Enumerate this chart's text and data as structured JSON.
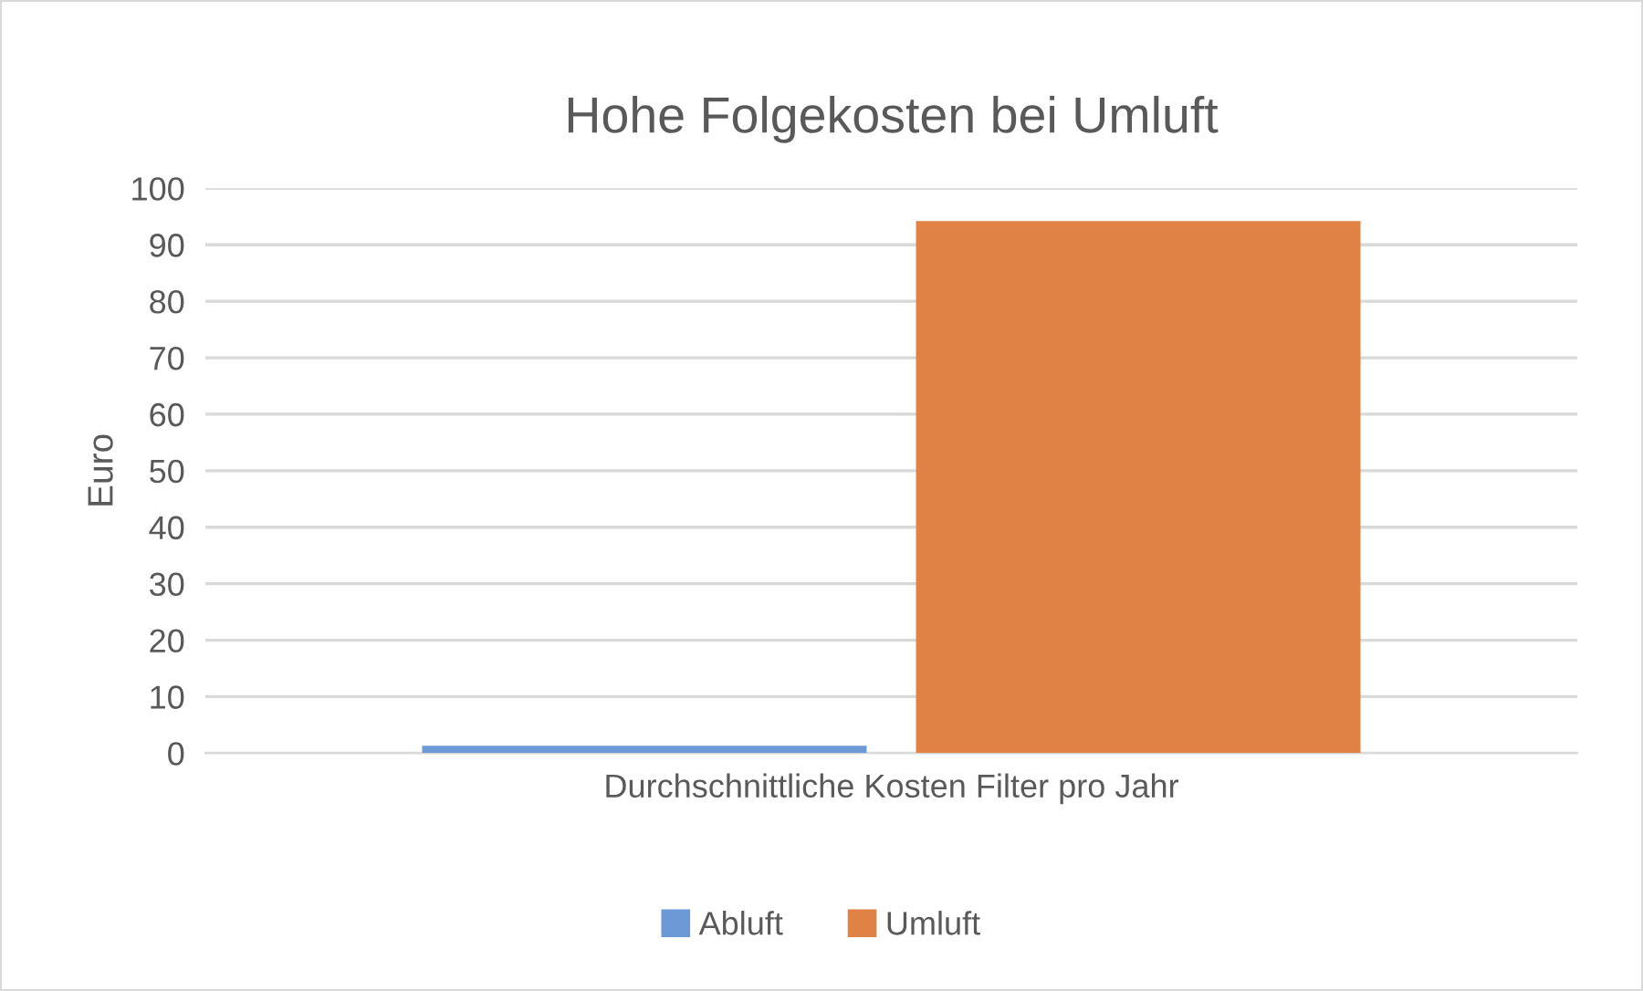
{
  "chart_data": {
    "type": "bar",
    "title": "Hohe Folgekosten bei Umluft",
    "ylabel": "Euro",
    "categories": [
      "Durchschnittliche Kosten Filter pro Jahr"
    ],
    "series": [
      {
        "name": "Abluft",
        "color": "#6d9ad6",
        "values": [
          1.3
        ]
      },
      {
        "name": "Umluft",
        "color": "#e08245",
        "values": [
          94.2
        ]
      }
    ],
    "ylim": [
      0,
      100
    ],
    "yticks": [
      0,
      10,
      20,
      30,
      40,
      50,
      60,
      70,
      80,
      90,
      100
    ],
    "grid": "y",
    "legend": "bottom"
  }
}
